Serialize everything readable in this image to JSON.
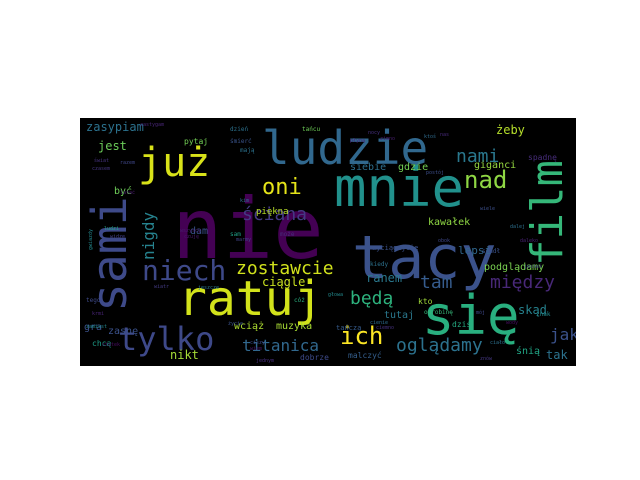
{
  "background": "#000000",
  "page_background": "#ffffff",
  "palette": [
    "#440154",
    "#46327e",
    "#365c8d",
    "#277f8e",
    "#1fa187",
    "#4ac16d",
    "#a0da39",
    "#fde725"
  ],
  "words": [
    {
      "text": "nie",
      "color": "#440154"
    },
    {
      "text": "tacy",
      "color": "#3b528b"
    },
    {
      "text": "mnie",
      "color": "#21918c"
    },
    {
      "text": "ratuj",
      "color": "#d2e21b"
    },
    {
      "text": "sami",
      "color": "#3e4a89"
    },
    {
      "text": "ludzie",
      "color": "#31688e"
    },
    {
      "text": "już",
      "color": "#d8e219"
    },
    {
      "text": "film",
      "color": "#35b779"
    },
    {
      "text": "się",
      "color": "#29af7f"
    },
    {
      "text": "tylko",
      "color": "#3e4989"
    },
    {
      "text": "niech",
      "color": "#3e4989"
    },
    {
      "text": "oni",
      "color": "#e5e419"
    },
    {
      "text": "ich",
      "color": "#fde725"
    },
    {
      "text": "nad",
      "color": "#8fd744"
    },
    {
      "text": "nami",
      "color": "#2a788e"
    },
    {
      "text": "ściana",
      "color": "#443983"
    },
    {
      "text": "titanica",
      "color": "#31688e"
    },
    {
      "text": "oglądamy",
      "color": "#2c728e"
    },
    {
      "text": "między",
      "color": "#482878"
    },
    {
      "text": "zostawcie",
      "color": "#d0e11c"
    },
    {
      "text": "będą",
      "color": "#2db27d"
    },
    {
      "text": "tam",
      "color": "#365c8d"
    },
    {
      "text": "nigdy",
      "color": "#26828e"
    },
    {
      "text": "jak",
      "color": "#3b528b"
    },
    {
      "text": "zasypiam",
      "color": "#2c728e"
    },
    {
      "text": "żeby",
      "color": "#b5de2b"
    },
    {
      "text": "ciągle",
      "color": "#c8e020"
    },
    {
      "text": "ranem",
      "color": "#2a788e"
    },
    {
      "text": "jest",
      "color": "#6ccd5a"
    },
    {
      "text": "lepsi",
      "color": "#31688e"
    },
    {
      "text": "podglądamy",
      "color": "#7ad151"
    },
    {
      "text": "skąd",
      "color": "#26828e"
    },
    {
      "text": "tak",
      "color": "#2c728e"
    },
    {
      "text": "nikt",
      "color": "#a5db36"
    },
    {
      "text": "wciąż",
      "color": "#addc30"
    },
    {
      "text": "muzyka",
      "color": "#a8db34"
    },
    {
      "text": "kawałek",
      "color": "#8fd744"
    },
    {
      "text": "giganci",
      "color": "#95d840"
    },
    {
      "text": "tutaj",
      "color": "#2a788e"
    },
    {
      "text": "śnią",
      "color": "#21a685"
    },
    {
      "text": "gdzie",
      "color": "#75d054"
    },
    {
      "text": "siebie",
      "color": "#2e6f8e"
    },
    {
      "text": "dam",
      "color": "#3b528b"
    },
    {
      "text": "być",
      "color": "#6ece58"
    },
    {
      "text": "gra",
      "color": "#3b528b"
    },
    {
      "text": "zasnę",
      "color": "#3b528b"
    },
    {
      "text": "dobrze",
      "color": "#3e4a89"
    },
    {
      "text": "malczyć",
      "color": "#355f8d"
    },
    {
      "text": "piękna",
      "color": "#b8de29"
    },
    {
      "text": "pytaj",
      "color": "#73d056"
    },
    {
      "text": "spadnę",
      "color": "#472d7b"
    },
    {
      "text": "dziś",
      "color": "#25ab82"
    },
    {
      "text": "chcą",
      "color": "#1f9e89"
    },
    {
      "text": "kto",
      "color": "#a0da39"
    },
    {
      "text": "tańczą",
      "color": "#365c8d"
    },
    {
      "text": "wyciągajcie",
      "color": "#3b528b"
    },
    {
      "text": "kiedy",
      "color": "#2c728e"
    },
    {
      "text": "śmierć",
      "color": "#3a548c"
    },
    {
      "text": "sam",
      "color": "#1fa187"
    },
    {
      "text": "tego",
      "color": "#3e4a89"
    },
    {
      "text": "dzień",
      "color": "#2c728e"
    },
    {
      "text": "tańcu",
      "color": "#6ece58"
    },
    {
      "text": "znak",
      "color": "#238a8d"
    },
    {
      "text": "może",
      "color": "#472d7b"
    },
    {
      "text": "cóż",
      "color": "#2ab07f"
    },
    {
      "text": "spadł",
      "color": "#3b528b"
    },
    {
      "text": "krmi",
      "color": "#482475"
    },
    {
      "text": "gwiazdy",
      "color": "#23888e"
    },
    {
      "text": "latać",
      "color": "#481a6c"
    },
    {
      "text": "zamiast",
      "color": "#23888e"
    },
    {
      "text": "jeszcze",
      "color": "#2a788e"
    },
    {
      "text": "marmy",
      "color": "#414487"
    },
    {
      "text": "życie",
      "color": "#3b528b"
    },
    {
      "text": "głowa",
      "color": "#238a8d"
    },
    {
      "text": "nocy",
      "color": "#46307e"
    },
    {
      "text": "zimno",
      "color": "#481f70"
    },
    {
      "text": "jednym",
      "color": "#472f7d"
    },
    {
      "text": "płyną",
      "color": "#482173"
    },
    {
      "text": "mój",
      "color": "#3e4989"
    },
    {
      "text": "odrobinę",
      "color": "#35b779"
    },
    {
      "text": "cienie",
      "color": "#2e6e8e"
    },
    {
      "text": "zastygam",
      "color": "#482677"
    },
    {
      "text": "postój",
      "color": "#3d4e8a"
    },
    {
      "text": "ciemno",
      "color": "#46327e"
    },
    {
      "text": "czasem",
      "color": "#453781"
    },
    {
      "text": "razem",
      "color": "#3f4788"
    },
    {
      "text": "widzę",
      "color": "#424086"
    },
    {
      "text": "dalej",
      "color": "#2d708e"
    },
    {
      "text": "daleko",
      "color": "#482071"
    },
    {
      "text": "jesteś",
      "color": "#404588"
    },
    {
      "text": "wiem",
      "color": "#481467"
    },
    {
      "text": "ciszy",
      "color": "#3e4a89"
    },
    {
      "text": "mają",
      "color": "#2c728e"
    },
    {
      "text": "ludzi",
      "color": "#22a785"
    },
    {
      "text": "świat",
      "color": "#46337f"
    },
    {
      "text": "nas",
      "color": "#472a7a"
    },
    {
      "text": "ktoś",
      "color": "#2f6c8e"
    },
    {
      "text": "obok",
      "color": "#3f4889"
    },
    {
      "text": "wszyscy",
      "color": "#481c6e"
    },
    {
      "text": "znów",
      "color": "#453882"
    },
    {
      "text": "ciało",
      "color": "#2d718e"
    },
    {
      "text": "kim",
      "color": "#2f6b8e"
    },
    {
      "text": "wiatr",
      "color": "#443b84"
    },
    {
      "text": "czuję",
      "color": "#481769"
    },
    {
      "text": "statek",
      "color": "#470d60"
    },
    {
      "text": "wody",
      "color": "#470e61"
    },
    {
      "text": "wiele",
      "color": "#3c4f8a"
    }
  ]
}
